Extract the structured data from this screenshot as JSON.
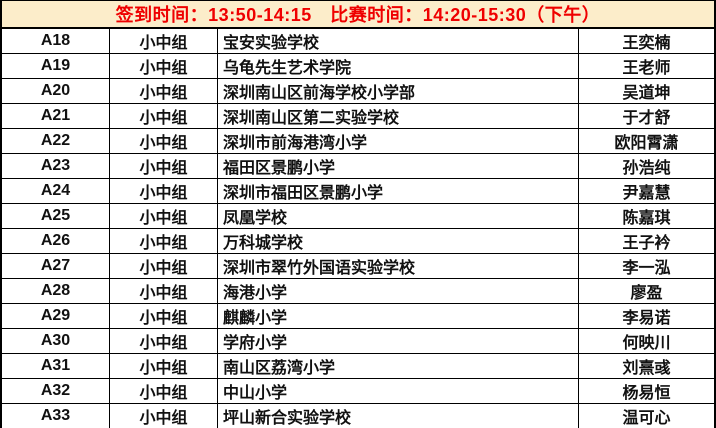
{
  "colors": {
    "header_bg": "#fcedca",
    "header_text": "#ef0000",
    "border": "#000000"
  },
  "header": {
    "text": "签到时间：13:50-14:15　比赛时间：14:20-15:30（下午）",
    "signin_time": "13:50-14:15",
    "match_time": "14:20-15:30",
    "session": "下午"
  },
  "table": {
    "rows": [
      {
        "id": "A18",
        "group": "小中组",
        "school": "宝安实验学校",
        "name": "王奕楠"
      },
      {
        "id": "A19",
        "group": "小中组",
        "school": "乌龟先生艺术学院",
        "name": "王老师"
      },
      {
        "id": "A20",
        "group": "小中组",
        "school": "深圳南山区前海学校小学部",
        "name": "吴道坤"
      },
      {
        "id": "A21",
        "group": "小中组",
        "school": "深圳南山区第二实验学校",
        "name": "于才舒"
      },
      {
        "id": "A22",
        "group": "小中组",
        "school": "深圳市前海港湾小学",
        "name": "欧阳霄潇"
      },
      {
        "id": "A23",
        "group": "小中组",
        "school": "福田区景鹏小学",
        "name": "孙浩纯"
      },
      {
        "id": "A24",
        "group": "小中组",
        "school": "深圳市福田区景鹏小学",
        "name": "尹嘉慧"
      },
      {
        "id": "A25",
        "group": "小中组",
        "school": "凤凰学校",
        "name": "陈嘉琪"
      },
      {
        "id": "A26",
        "group": "小中组",
        "school": "万科城学校",
        "name": "王子衿"
      },
      {
        "id": "A27",
        "group": "小中组",
        "school": "深圳市翠竹外国语实验学校",
        "name": "李一泓"
      },
      {
        "id": "A28",
        "group": "小中组",
        "school": "海港小学",
        "name": "廖盈"
      },
      {
        "id": "A29",
        "group": "小中组",
        "school": "麒麟小学",
        "name": "李易诺"
      },
      {
        "id": "A30",
        "group": "小中组",
        "school": "学府小学",
        "name": "何映川"
      },
      {
        "id": "A31",
        "group": "小中组",
        "school": "南山区荔湾小学",
        "name": "刘熹彧"
      },
      {
        "id": "A32",
        "group": "小中组",
        "school": "中山小学",
        "name": "杨易恒"
      },
      {
        "id": "A33",
        "group": "小中组",
        "school": "坪山新合实验学校",
        "name": "温可心"
      }
    ]
  }
}
